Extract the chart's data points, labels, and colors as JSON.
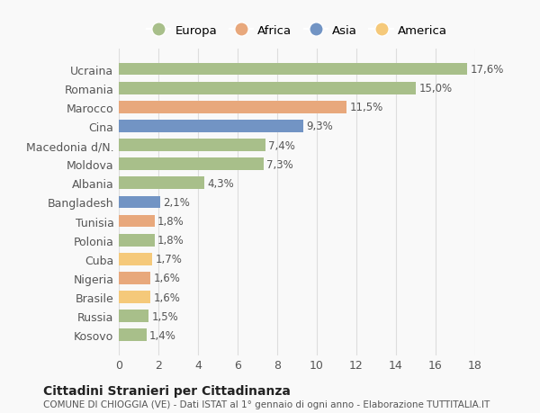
{
  "categories": [
    "Kosovo",
    "Russia",
    "Brasile",
    "Nigeria",
    "Cuba",
    "Polonia",
    "Tunisia",
    "Bangladesh",
    "Albania",
    "Moldova",
    "Macedonia d/N.",
    "Cina",
    "Marocco",
    "Romania",
    "Ucraina"
  ],
  "values": [
    1.4,
    1.5,
    1.6,
    1.6,
    1.7,
    1.8,
    1.8,
    2.1,
    4.3,
    7.3,
    7.4,
    9.3,
    11.5,
    15.0,
    17.6
  ],
  "labels": [
    "1,4%",
    "1,5%",
    "1,6%",
    "1,6%",
    "1,7%",
    "1,8%",
    "1,8%",
    "2,1%",
    "4,3%",
    "7,3%",
    "7,4%",
    "9,3%",
    "11,5%",
    "15,0%",
    "17,6%"
  ],
  "colors": [
    "#a8bf8a",
    "#a8bf8a",
    "#f5c97a",
    "#e8a87c",
    "#f5c97a",
    "#a8bf8a",
    "#e8a87c",
    "#7294c4",
    "#a8bf8a",
    "#a8bf8a",
    "#a8bf8a",
    "#7294c4",
    "#e8a87c",
    "#a8bf8a",
    "#a8bf8a"
  ],
  "legend_labels": [
    "Europa",
    "Africa",
    "Asia",
    "America"
  ],
  "legend_colors": [
    "#a8bf8a",
    "#e8a87c",
    "#7294c4",
    "#f5c97a"
  ],
  "title": "Cittadini Stranieri per Cittadinanza",
  "subtitle": "COMUNE DI CHIOGGIA (VE) - Dati ISTAT al 1° gennaio di ogni anno - Elaborazione TUTTITALIA.IT",
  "xlim": [
    0,
    18
  ],
  "xticks": [
    0,
    2,
    4,
    6,
    8,
    10,
    12,
    14,
    16,
    18
  ],
  "bg_color": "#f9f9f9",
  "grid_color": "#dddddd",
  "label_color": "#555555",
  "tick_color": "#555555"
}
